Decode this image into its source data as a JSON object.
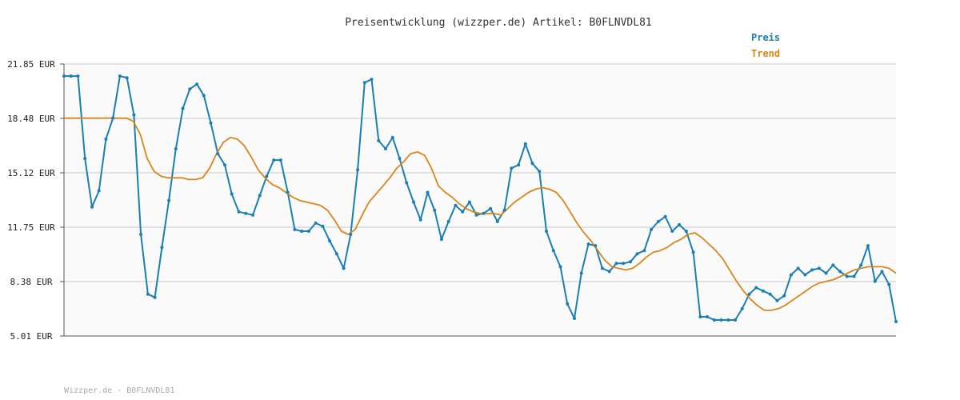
{
  "title": "Preisentwicklung (wizzper.de) Artikel: B0FLNVDL81",
  "footer": "Wizzper.de - B0FLNVDL81",
  "colors": {
    "preis": "#1a7fb5",
    "trend": "#d9861a",
    "grid": "#e2e2e2",
    "background": "#ffffff",
    "plot_background": "#fafafa"
  },
  "chart_data": {
    "type": "line",
    "title": "Preisentwicklung (wizzper.de) Artikel: B0FLNVDL81",
    "xlabel": "",
    "ylabel": "",
    "ylim": [
      5.01,
      21.85
    ],
    "yticks": [
      "5.01 EUR",
      "8.38 EUR",
      "11.75 EUR",
      "15.12 EUR",
      "18.48 EUR",
      "21.85 EUR"
    ],
    "grid": true,
    "legend": "top-right",
    "series": [
      {
        "name": "Preis",
        "color": "#1a7fb5",
        "values": [
          21.1,
          21.1,
          21.1,
          16.0,
          13.0,
          14.0,
          17.2,
          18.5,
          21.1,
          21.0,
          18.7,
          11.3,
          7.6,
          7.4,
          10.5,
          13.4,
          16.6,
          19.1,
          20.3,
          20.6,
          19.9,
          18.2,
          16.3,
          15.6,
          13.8,
          12.7,
          12.6,
          12.5,
          13.7,
          14.9,
          15.9,
          15.9,
          13.9,
          11.6,
          11.5,
          11.5,
          12.0,
          11.8,
          10.9,
          10.1,
          9.2,
          11.3,
          15.3,
          20.7,
          20.9,
          17.1,
          16.6,
          17.3,
          16.0,
          14.5,
          13.3,
          12.2,
          13.9,
          12.8,
          11.0,
          12.1,
          13.1,
          12.7,
          13.3,
          12.5,
          12.6,
          12.9,
          12.1,
          12.8,
          15.4,
          15.6,
          16.9,
          15.7,
          15.2,
          11.5,
          10.3,
          9.3,
          7.0,
          6.1,
          8.9,
          10.7,
          10.6,
          9.2,
          9.0,
          9.5,
          9.5,
          9.6,
          10.1,
          10.3,
          11.6,
          12.1,
          12.4,
          11.5,
          11.9,
          11.5,
          10.2,
          6.2,
          6.2,
          6.0,
          6.0,
          6.0,
          6.0,
          6.7,
          7.6,
          8.0,
          7.8,
          7.6,
          7.2,
          7.5,
          8.8,
          9.2,
          8.8,
          9.1,
          9.2,
          8.9,
          9.4,
          9.0,
          8.7,
          8.7,
          9.4,
          10.6,
          8.4,
          9.0,
          8.2,
          5.9
        ]
      },
      {
        "name": "Trend",
        "color": "#d9861a",
        "values": [
          18.5,
          18.5,
          18.5,
          18.5,
          18.5,
          18.5,
          18.5,
          18.5,
          18.5,
          18.5,
          18.3,
          17.5,
          16.0,
          15.2,
          14.9,
          14.8,
          14.8,
          14.8,
          14.7,
          14.7,
          14.8,
          15.4,
          16.3,
          17.0,
          17.3,
          17.2,
          16.8,
          16.1,
          15.3,
          14.8,
          14.4,
          14.2,
          13.9,
          13.6,
          13.4,
          13.3,
          13.2,
          13.1,
          12.8,
          12.2,
          11.5,
          11.3,
          11.6,
          12.5,
          13.3,
          13.8,
          14.3,
          14.8,
          15.4,
          15.8,
          16.3,
          16.4,
          16.2,
          15.4,
          14.3,
          13.9,
          13.6,
          13.2,
          12.9,
          12.7,
          12.6,
          12.6,
          12.6,
          12.5,
          12.9,
          13.3,
          13.6,
          13.9,
          14.1,
          14.2,
          14.1,
          13.9,
          13.4,
          12.7,
          12.0,
          11.4,
          10.9,
          10.3,
          9.7,
          9.3,
          9.2,
          9.1,
          9.2,
          9.5,
          9.9,
          10.2,
          10.3,
          10.5,
          10.8,
          11.0,
          11.3,
          11.4,
          11.1,
          10.7,
          10.3,
          9.8,
          9.1,
          8.4,
          7.8,
          7.3,
          6.9,
          6.6,
          6.6,
          6.7,
          6.9,
          7.2,
          7.5,
          7.8,
          8.1,
          8.3,
          8.4,
          8.5,
          8.7,
          8.9,
          9.1,
          9.2,
          9.3,
          9.3,
          9.3,
          9.2,
          8.9
        ]
      }
    ]
  }
}
